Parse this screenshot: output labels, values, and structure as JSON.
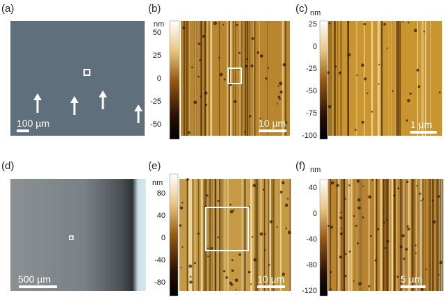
{
  "panels": [
    {
      "label": "(a)",
      "scale_bar": "100 µm"
    },
    {
      "label": "(b)",
      "unit": "nm",
      "colorbar_ticks": [
        "50",
        "25",
        "0",
        "-25",
        "-50"
      ],
      "scale_bar": "10 µm"
    },
    {
      "label": "(c)",
      "unit": "nm",
      "colorbar_ticks": [
        "25",
        "0",
        "-25",
        "-50",
        "-75",
        "-100"
      ],
      "scale_bar": "1 µm"
    },
    {
      "label": "(d)",
      "scale_bar": "500 µm"
    },
    {
      "label": "(e)",
      "unit": "nm",
      "colorbar_ticks": [
        "80",
        "40",
        "0",
        "-40",
        "-80"
      ],
      "scale_bar": "10 µm"
    },
    {
      "label": "(f)",
      "unit": "nm",
      "colorbar_ticks": [
        "40",
        "0",
        "-40",
        "-80",
        "-120"
      ],
      "scale_bar": "5 µm"
    }
  ]
}
